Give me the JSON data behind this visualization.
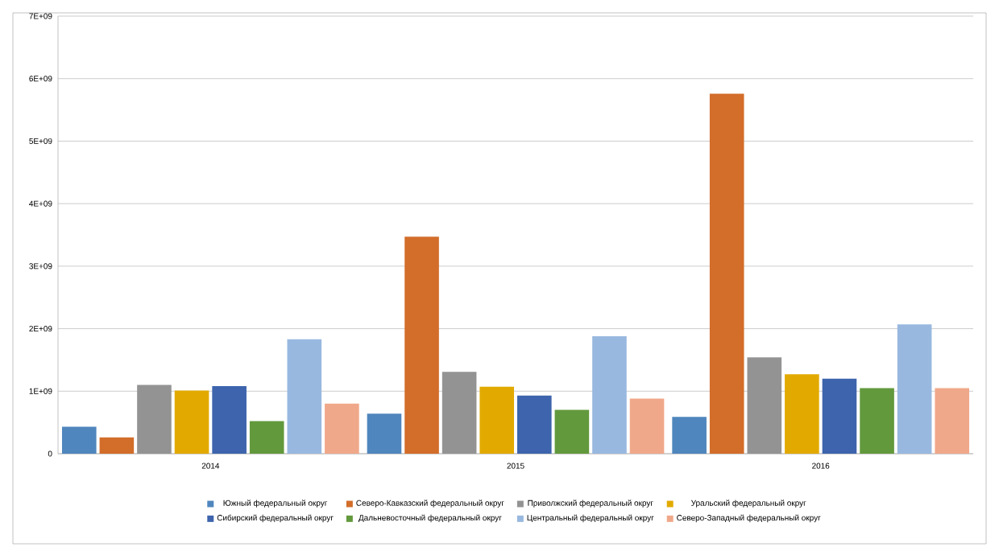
{
  "chart_data": {
    "type": "bar",
    "categories": [
      "2014",
      "2015",
      "2016"
    ],
    "series": [
      {
        "name": "Южный федеральный округ",
        "color": "#4f86bd",
        "values": [
          430000000,
          640000000,
          590000000
        ]
      },
      {
        "name": "Северо-Кавказский федеральный округ",
        "color": "#d26d2a",
        "values": [
          260000000,
          3470000000,
          5760000000
        ]
      },
      {
        "name": "Приволжский федеральный округ",
        "color": "#939393",
        "values": [
          1100000000,
          1310000000,
          1540000000
        ]
      },
      {
        "name": "Уральский федеральный округ",
        "color": "#e2aa00",
        "values": [
          1010000000,
          1070000000,
          1270000000
        ]
      },
      {
        "name": "Сибирский федеральный округ",
        "color": "#3d64ac",
        "values": [
          1080000000,
          930000000,
          1200000000
        ]
      },
      {
        "name": "Дальневосточный федеральный округ",
        "color": "#62993d",
        "values": [
          520000000,
          700000000,
          1050000000
        ]
      },
      {
        "name": "Центральный федеральный округ",
        "color": "#98b8df",
        "values": [
          1830000000,
          1880000000,
          2070000000
        ]
      },
      {
        "name": "Северо-Западный федеральный округ",
        "color": "#f0a88a",
        "values": [
          800000000,
          880000000,
          1050000000
        ]
      }
    ],
    "ylim": [
      0,
      7000000000
    ],
    "yticks": [
      0,
      {
        "value": 1000000000,
        "label": "1E+09"
      },
      {
        "value": 2000000000,
        "label": "2E+09"
      },
      {
        "value": 3000000000,
        "label": "3E+09"
      },
      {
        "value": 4000000000,
        "label": "4E+09"
      },
      {
        "value": 5000000000,
        "label": "5E+09"
      },
      {
        "value": 6000000000,
        "label": "6E+09"
      },
      {
        "value": 7000000000,
        "label": "7E+09"
      }
    ],
    "grid": "y",
    "legend": "bottom"
  }
}
